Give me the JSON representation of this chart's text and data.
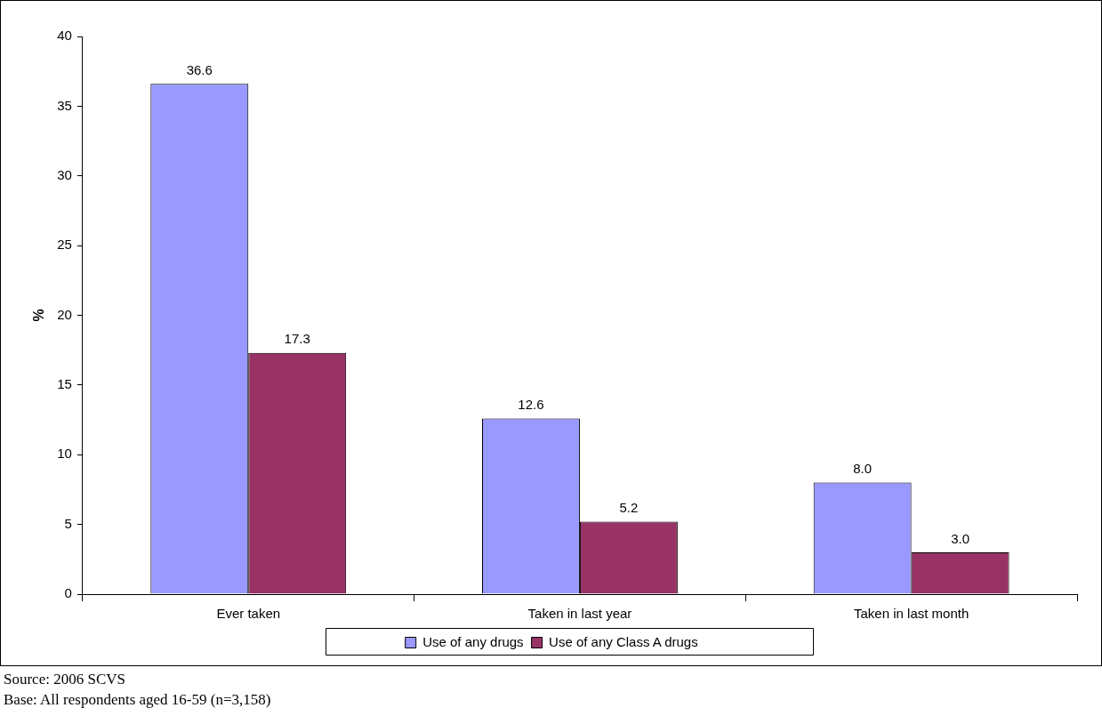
{
  "chart_data": {
    "type": "bar",
    "ylabel": "%",
    "categories": [
      "Ever taken",
      "Taken in last year",
      "Taken in last month"
    ],
    "series": [
      {
        "name": "Use of any drugs",
        "color": "#9999ff",
        "values": [
          36.6,
          12.6,
          8
        ],
        "value_labels": [
          "36.6",
          "12.6",
          "8.0"
        ]
      },
      {
        "name": "Use of any Class A drugs",
        "color": "#993366",
        "values": [
          17.3,
          5.2,
          3
        ],
        "value_labels": [
          "17.3",
          "5.2",
          "3.0"
        ]
      }
    ],
    "ylim": [
      0,
      40
    ],
    "yticks": [
      0,
      5,
      10,
      15,
      20,
      25,
      30,
      35,
      40
    ],
    "grid": false,
    "legend": "bottom",
    "annotations": [
      "Source: 2006 SCVS",
      "Base: All respondents aged 16-59 (n=3,158)"
    ]
  }
}
